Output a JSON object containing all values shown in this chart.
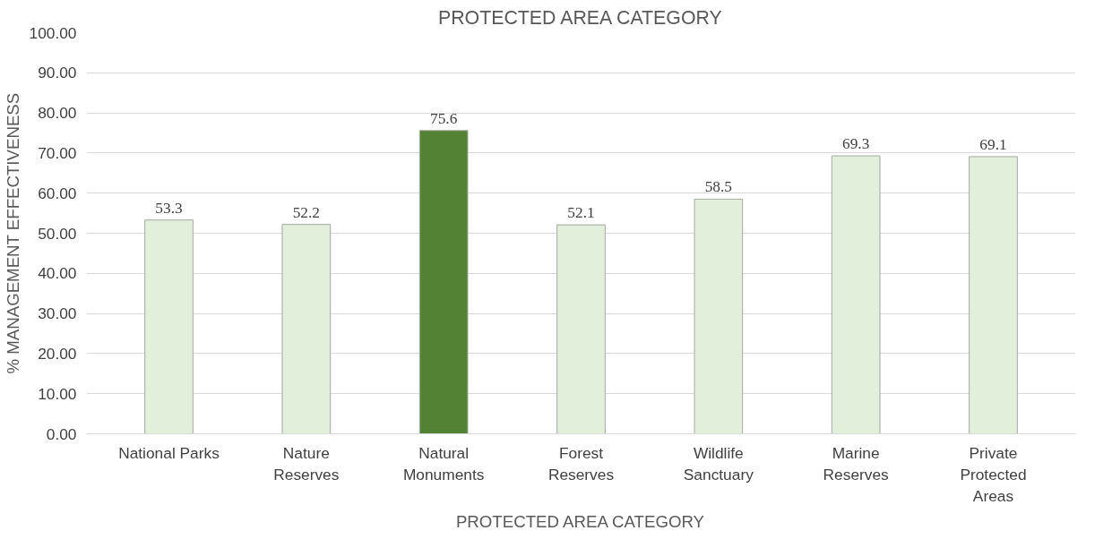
{
  "chart_data": {
    "type": "bar",
    "title": "PROTECTED AREA CATEGORY",
    "xlabel": "PROTECTED AREA CATEGORY",
    "ylabel": "% MANAGEMENT EFFECTIVENESS",
    "categories": [
      "National Parks",
      "Nature Reserves",
      "Natural Monuments",
      "Forest Reserves",
      "Wildlife Sanctuary",
      "Marine Reserves",
      "Private Protected Areas"
    ],
    "values": [
      53.3,
      52.2,
      75.6,
      52.1,
      58.5,
      69.3,
      69.1
    ],
    "colors": [
      "#e2efda",
      "#e2efda",
      "#548235",
      "#e2efda",
      "#e2efda",
      "#e2efda",
      "#e2efda"
    ],
    "ylim": [
      0,
      100
    ],
    "yticks": [
      {
        "value": 0,
        "label": "0.00"
      },
      {
        "value": 10,
        "label": "10.00"
      },
      {
        "value": 20,
        "label": "20.00"
      },
      {
        "value": 30,
        "label": "30.00"
      },
      {
        "value": 40,
        "label": "40.00"
      },
      {
        "value": 50,
        "label": "50.00"
      },
      {
        "value": 60,
        "label": "60.00"
      },
      {
        "value": 70,
        "label": "70.00"
      },
      {
        "value": 80,
        "label": "80.00"
      },
      {
        "value": 90,
        "label": "90.00"
      },
      {
        "value": 100,
        "label": "100.00"
      }
    ],
    "grid": "y",
    "data_labels": true
  }
}
